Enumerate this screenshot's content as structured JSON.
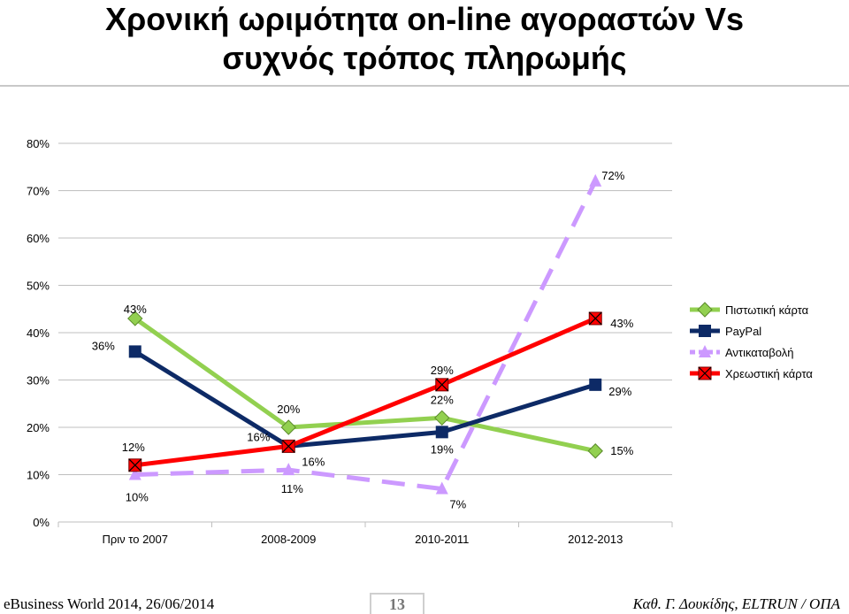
{
  "title_line1": "Χρονική ωριμότητα on-line αγοραστών Vs",
  "title_line2": "συχνός τρόπος πληρωμής",
  "footer": {
    "left": "eBusiness World 2014, 26/06/2014",
    "page_number": "13",
    "right": "Καθ. Γ. Δουκίδης, ELTRUN / ΟΠΑ"
  },
  "chart_data": {
    "type": "line",
    "categories": [
      "Πριν το 2007",
      "2008-2009",
      "2010-2011",
      "2012-2013"
    ],
    "ylim": [
      0,
      80
    ],
    "y_ticks": [
      "0%",
      "10%",
      "20%",
      "30%",
      "40%",
      "50%",
      "60%",
      "70%",
      "80%"
    ],
    "grid": true,
    "legend_position": "right",
    "series": [
      {
        "name": "Πιστωτική κάρτα",
        "values": [
          43,
          20,
          22,
          15
        ],
        "labels": [
          "43%",
          "20%",
          "22%",
          "15%"
        ],
        "color": "#92d050",
        "marker": "diamond",
        "dash": "solid"
      },
      {
        "name": "PayPal",
        "values": [
          36,
          16,
          19,
          29
        ],
        "labels": [
          "36%",
          "16%",
          "19%",
          "29%"
        ],
        "color": "#0d2a66",
        "marker": "square",
        "dash": "solid"
      },
      {
        "name": "Αντικαταβολή",
        "values": [
          10,
          11,
          7,
          72
        ],
        "labels": [
          "10%",
          "11%",
          "7%",
          "72%"
        ],
        "color": "#cc99ff",
        "marker": "triangle",
        "dash": "dashed"
      },
      {
        "name": "Χρεωστική κάρτα",
        "values": [
          12,
          16,
          29,
          43
        ],
        "labels": [
          "12%",
          "16%",
          "29%",
          "43%"
        ],
        "color": "#ff0000",
        "marker": "xbox",
        "dash": "solid"
      }
    ]
  }
}
